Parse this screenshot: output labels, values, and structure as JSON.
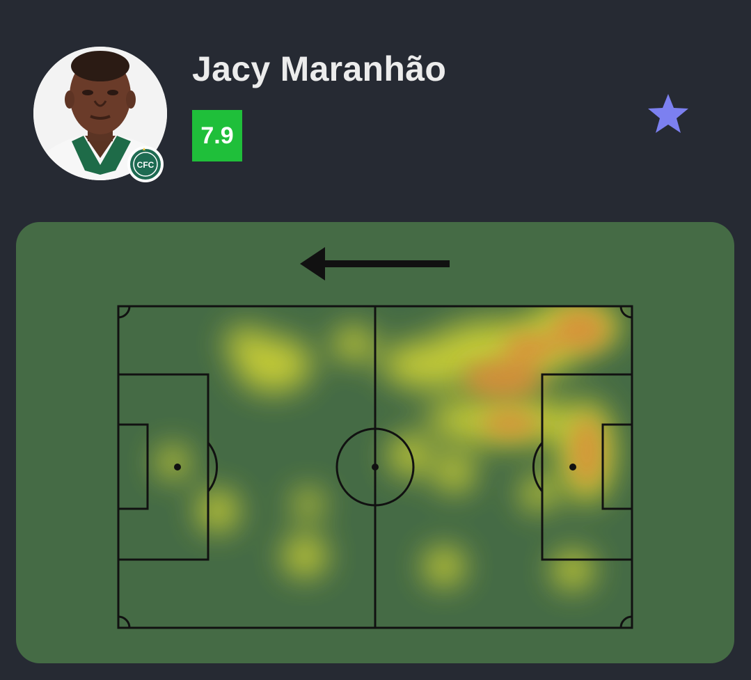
{
  "player": {
    "name": "Jacy Maranhão",
    "rating": "7.9",
    "rating_color": "#1fbf3a",
    "club_badge_text": "CFC",
    "favorite_icon": "star-icon",
    "favorite_color": "#7c80f0"
  },
  "heatmap": {
    "attack_direction": "left",
    "direction_icon": "arrow-left-icon",
    "pitch_color": "#456b45",
    "line_color": "#111111",
    "low_color": "#e0e036",
    "high_color": "#e58a3a"
  }
}
